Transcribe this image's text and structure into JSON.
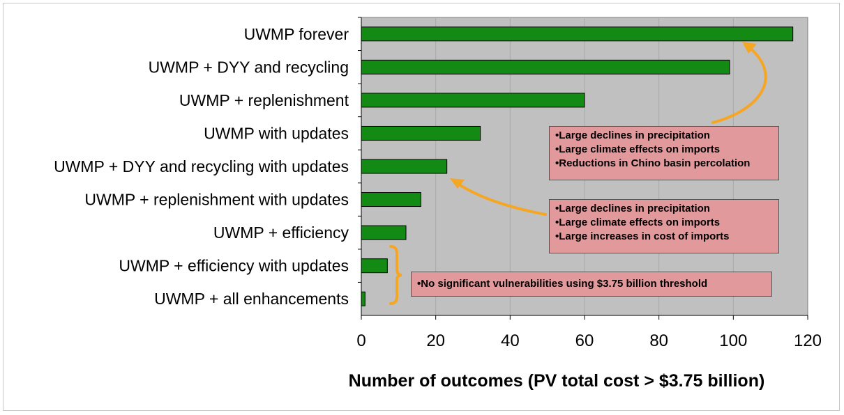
{
  "chart_data": {
    "type": "bar",
    "orientation": "horizontal",
    "categories": [
      "UWMP forever",
      "UWMP + DYY and recycling",
      "UWMP + replenishment",
      "UWMP with updates",
      "UWMP + DYY and recycling with updates",
      "UWMP + replenishment with updates",
      "UWMP + efficiency",
      "UWMP + efficiency with updates",
      "UWMP + all enhancements"
    ],
    "values": [
      116,
      99,
      60,
      32,
      23,
      16,
      12,
      7,
      1
    ],
    "xlabel": "Number of outcomes (PV total cost > $3.75 billion)",
    "xlim": [
      0,
      120
    ],
    "xticks": [
      "0",
      "20",
      "40",
      "60",
      "80",
      "100",
      "120"
    ],
    "grid": "vertical",
    "colors": {
      "bar": "#138a13",
      "plot_bg": "#c0c0c0",
      "note_bg": "#e2999b",
      "arrow": "#f5a623"
    },
    "annotations": [
      {
        "lines": [
          "•Large declines in precipitation",
          "•Large climate effects on imports",
          "•Reductions in Chino basin percolation"
        ],
        "points_to": "UWMP forever"
      },
      {
        "lines": [
          "•Large declines in precipitation",
          "•Large climate effects on imports",
          "•Large increases in cost of imports"
        ],
        "points_to": "UWMP + DYY and recycling with updates"
      },
      {
        "lines": [
          "•No significant vulnerabilities using $3.75 billion threshold"
        ],
        "points_to": "UWMP + efficiency with updates / UWMP + all enhancements"
      }
    ]
  }
}
